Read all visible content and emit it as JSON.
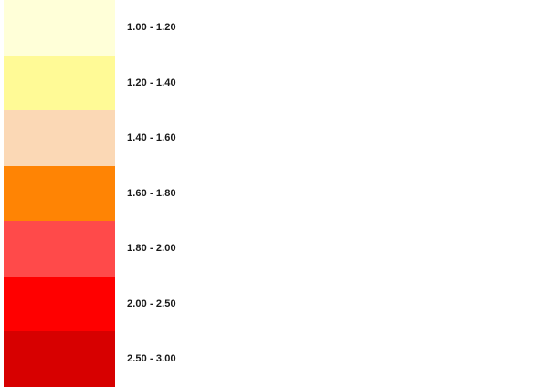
{
  "legend": {
    "items": [
      {
        "label": "1.00 - 1.20",
        "color": "#ffffd8"
      },
      {
        "label": "1.20 - 1.40",
        "color": "#fffa96"
      },
      {
        "label": "1.40 - 1.60",
        "color": "#fbd8b5"
      },
      {
        "label": "1.60 - 1.80",
        "color": "#ff8404"
      },
      {
        "label": "1.80 - 2.00",
        "color": "#ff4a4a"
      },
      {
        "label": "2.00 - 2.50",
        "color": "#ff0000"
      },
      {
        "label": "2.50 - 3.00",
        "color": "#d70000"
      }
    ]
  }
}
